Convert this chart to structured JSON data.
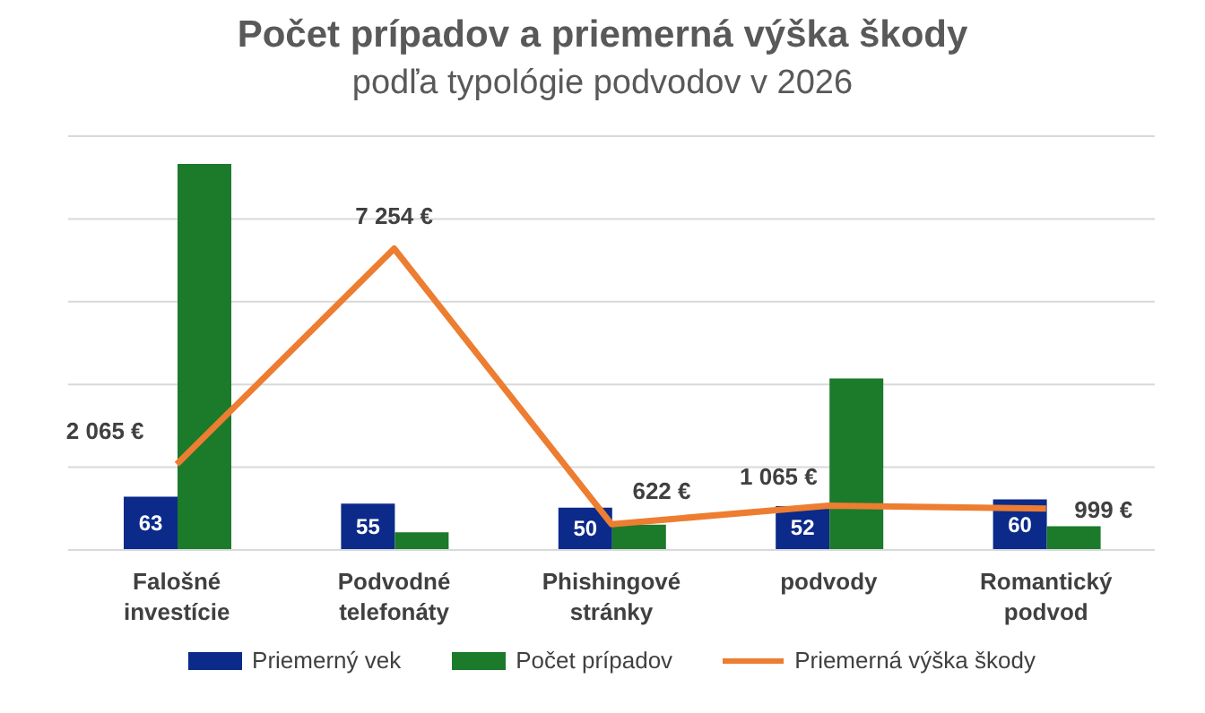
{
  "chart_data": {
    "type": "bar",
    "title": "Počet prípadov a priemerná výška škody",
    "subtitle": "podľa typológie podvodov v 2026",
    "categories": [
      "Falošné investície",
      "Podvodné telefonáty",
      "Phishingové stránky",
      "podvody",
      "Romantický podvod"
    ],
    "grid": "y",
    "legend": "bottom",
    "marker": "none",
    "tick_labels": false,
    "ylim": [
      0,
      490
    ],
    "y2lim": [
      0,
      9960
    ],
    "series": [
      {
        "name": "Priemerný vek",
        "color": "#0b2a8a",
        "values": [
          63,
          55,
          50,
          52,
          60
        ],
        "value_labels": [
          "63",
          "55",
          "50",
          "52",
          "60"
        ]
      },
      {
        "name": "Počet prípadov",
        "color": "#1c7a2b",
        "values": [
          457,
          21,
          30,
          203,
          28
        ]
      },
      {
        "name": "Priemerná výška škody",
        "type": "line",
        "axis": "y2",
        "color": "#ed7d31",
        "values": [
          2065,
          7254,
          622,
          1065,
          999
        ],
        "value_labels": [
          "2 065 €",
          "7 254 €",
          "622 €",
          "1 065 €",
          "999 €"
        ]
      }
    ]
  }
}
